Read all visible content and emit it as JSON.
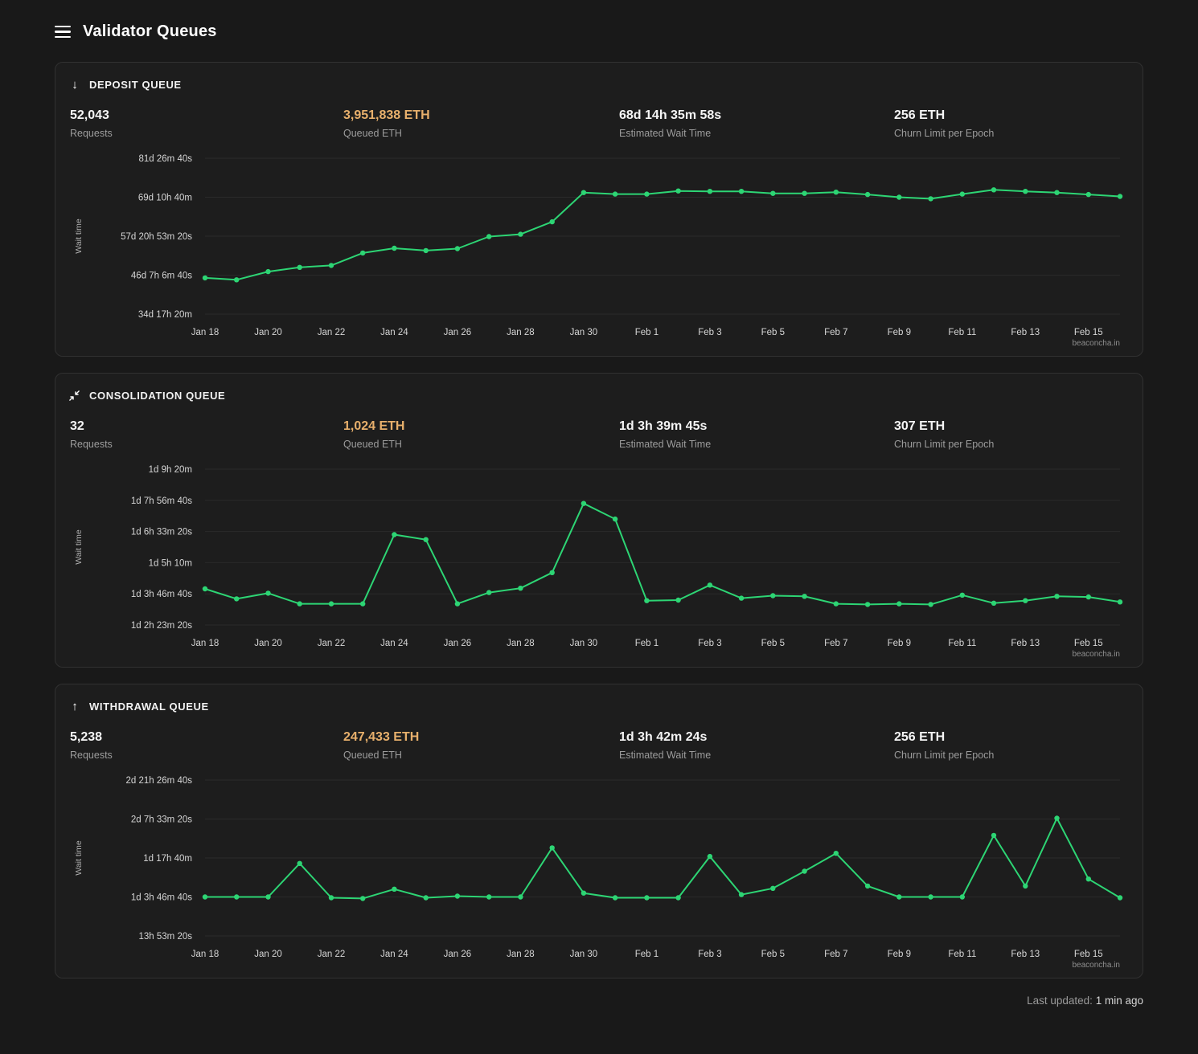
{
  "header": {
    "title": "Validator Queues"
  },
  "watermark": "beaconcha.in",
  "colors": {
    "line_green": "#2dd574",
    "accent_orange": "#e8b06c",
    "panel_bg": "#1d1d1d",
    "page_bg": "#191919"
  },
  "panels": [
    {
      "title": "DEPOSIT QUEUE",
      "icon": "arrow-down",
      "icon_glyph": "↓",
      "stats": [
        {
          "value": "52,043",
          "label": "Requests",
          "highlight": false
        },
        {
          "value": "3,951,838 ETH",
          "label": "Queued ETH",
          "highlight": true
        },
        {
          "value": "68d 14h 35m 58s",
          "label": "Estimated Wait Time",
          "highlight": false
        },
        {
          "value": "256 ETH",
          "label": "Churn Limit per Epoch",
          "highlight": false
        }
      ]
    },
    {
      "title": "CONSOLIDATION QUEUE",
      "icon": "compress-arrows",
      "icon_glyph": "",
      "stats": [
        {
          "value": "32",
          "label": "Requests",
          "highlight": false
        },
        {
          "value": "1,024 ETH",
          "label": "Queued ETH",
          "highlight": true
        },
        {
          "value": "1d 3h 39m 45s",
          "label": "Estimated Wait Time",
          "highlight": false
        },
        {
          "value": "307 ETH",
          "label": "Churn Limit per Epoch",
          "highlight": false
        }
      ]
    },
    {
      "title": "WITHDRAWAL QUEUE",
      "icon": "arrow-up",
      "icon_glyph": "↑",
      "stats": [
        {
          "value": "5,238",
          "label": "Requests",
          "highlight": false
        },
        {
          "value": "247,433 ETH",
          "label": "Queued ETH",
          "highlight": true
        },
        {
          "value": "1d 3h 42m 24s",
          "label": "Estimated Wait Time",
          "highlight": false
        },
        {
          "value": "256 ETH",
          "label": "Churn Limit per Epoch",
          "highlight": false
        }
      ]
    }
  ],
  "chart_data": [
    {
      "type": "line",
      "title": "Deposit queue wait time",
      "ylabel": "Wait time",
      "unit": "seconds",
      "grid": true,
      "legend": "none",
      "x_tick_every": 2,
      "x": [
        "Jan 18",
        "Jan 19",
        "Jan 20",
        "Jan 21",
        "Jan 22",
        "Jan 23",
        "Jan 24",
        "Jan 25",
        "Jan 26",
        "Jan 27",
        "Jan 28",
        "Jan 29",
        "Jan 30",
        "Jan 31",
        "Feb 1",
        "Feb 2",
        "Feb 3",
        "Feb 4",
        "Feb 5",
        "Feb 6",
        "Feb 7",
        "Feb 8",
        "Feb 9",
        "Feb 10",
        "Feb 11",
        "Feb 12",
        "Feb 13",
        "Feb 14",
        "Feb 15",
        "Feb 16"
      ],
      "values": [
        3930000,
        3880000,
        4090000,
        4200000,
        4250000,
        4570000,
        4690000,
        4630000,
        4680000,
        4990000,
        5050000,
        5370000,
        6120000,
        6080000,
        6080000,
        6160000,
        6150000,
        6150000,
        6100000,
        6100000,
        6130000,
        6070000,
        6000000,
        5960000,
        6080000,
        6190000,
        6150000,
        6120000,
        6070000,
        6020000
      ],
      "ylim": [
        3000000,
        7000000
      ],
      "y_ticks": [
        {
          "value": 3000000,
          "label": "34d 17h 20m"
        },
        {
          "value": 4000000,
          "label": "46d 7h 6m 40s"
        },
        {
          "value": 5000000,
          "label": "57d 20h 53m 20s"
        },
        {
          "value": 6000000,
          "label": "69d 10h 40m"
        },
        {
          "value": 7000000,
          "label": "81d 26m 40s"
        }
      ]
    },
    {
      "type": "line",
      "title": "Consolidation queue wait time",
      "ylabel": "Wait time",
      "unit": "seconds",
      "grid": true,
      "legend": "none",
      "x_tick_every": 2,
      "x": [
        "Jan 18",
        "Jan 19",
        "Jan 20",
        "Jan 21",
        "Jan 22",
        "Jan 23",
        "Jan 24",
        "Jan 25",
        "Jan 26",
        "Jan 27",
        "Jan 28",
        "Jan 29",
        "Jan 30",
        "Jan 31",
        "Feb 1",
        "Feb 2",
        "Feb 3",
        "Feb 4",
        "Feb 5",
        "Feb 6",
        "Feb 7",
        "Feb 8",
        "Feb 9",
        "Feb 10",
        "Feb 11",
        "Feb 12",
        "Feb 13",
        "Feb 14",
        "Feb 15",
        "Feb 16"
      ],
      "values": [
        100800,
        99200,
        100100,
        98400,
        98400,
        98400,
        109500,
        108700,
        98400,
        100200,
        100900,
        103400,
        114500,
        112000,
        98900,
        99000,
        101400,
        99300,
        99700,
        99600,
        98400,
        98300,
        98400,
        98300,
        99800,
        98500,
        98900,
        99600,
        99500,
        98700
      ],
      "ylim": [
        95000,
        120000
      ],
      "y_ticks": [
        {
          "value": 95000,
          "label": "1d 2h 23m 20s"
        },
        {
          "value": 100000,
          "label": "1d 3h 46m 40s"
        },
        {
          "value": 105000,
          "label": "1d 5h 10m"
        },
        {
          "value": 110000,
          "label": "1d 6h 33m 20s"
        },
        {
          "value": 115000,
          "label": "1d 7h 56m 40s"
        },
        {
          "value": 120000,
          "label": "1d 9h 20m"
        }
      ]
    },
    {
      "type": "line",
      "title": "Withdrawal queue wait time",
      "ylabel": "Wait time",
      "unit": "seconds",
      "grid": true,
      "legend": "none",
      "x_tick_every": 2,
      "x": [
        "Jan 18",
        "Jan 19",
        "Jan 20",
        "Jan 21",
        "Jan 22",
        "Jan 23",
        "Jan 24",
        "Jan 25",
        "Jan 26",
        "Jan 27",
        "Jan 28",
        "Jan 29",
        "Jan 30",
        "Jan 31",
        "Feb 1",
        "Feb 2",
        "Feb 3",
        "Feb 4",
        "Feb 5",
        "Feb 6",
        "Feb 7",
        "Feb 8",
        "Feb 9",
        "Feb 10",
        "Feb 11",
        "Feb 12",
        "Feb 13",
        "Feb 14",
        "Feb 15",
        "Feb 16"
      ],
      "values": [
        100000,
        100000,
        100000,
        143000,
        99000,
        98000,
        110000,
        99000,
        101000,
        100000,
        100000,
        163000,
        105000,
        99000,
        99000,
        99000,
        152000,
        103000,
        111000,
        133000,
        156000,
        114000,
        100000,
        100000,
        100000,
        179000,
        114000,
        201000,
        123000,
        99000
      ],
      "ylim": [
        50000,
        250000
      ],
      "y_ticks": [
        {
          "value": 50000,
          "label": "13h 53m 20s"
        },
        {
          "value": 100000,
          "label": "1d 3h 46m 40s"
        },
        {
          "value": 150000,
          "label": "1d 17h 40m"
        },
        {
          "value": 200000,
          "label": "2d 7h 33m 20s"
        },
        {
          "value": 250000,
          "label": "2d 21h 26m 40s"
        }
      ]
    }
  ],
  "footer": {
    "label": "Last updated:",
    "value": "1 min ago"
  }
}
